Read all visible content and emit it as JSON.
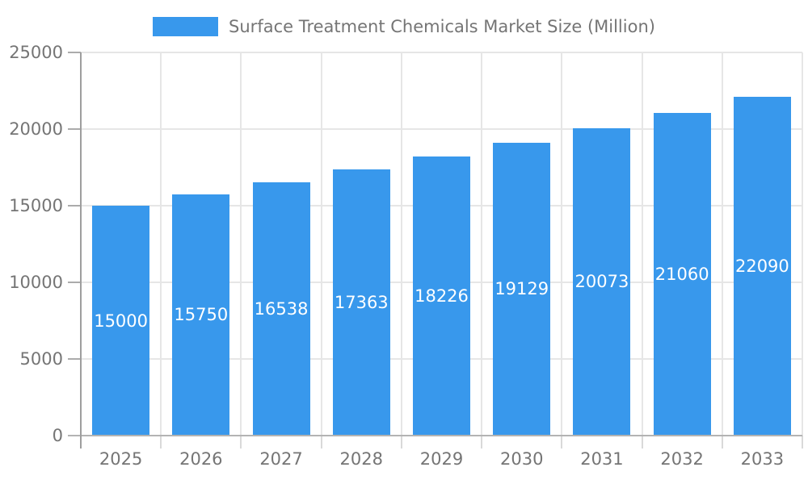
{
  "chart_data": {
    "type": "bar",
    "title": "Surface Treatment Chemicals Market Size (Million)",
    "categories": [
      "2025",
      "2026",
      "2027",
      "2028",
      "2029",
      "2030",
      "2031",
      "2032",
      "2033"
    ],
    "series": [
      {
        "name": "Surface Treatment Chemicals Market Size (Million)",
        "values": [
          15000,
          15750,
          16538,
          17363,
          18226,
          19129,
          20073,
          21060,
          22090
        ]
      }
    ],
    "xlabel": "",
    "ylabel": "",
    "ylim": [
      0,
      25000
    ],
    "y_ticks": [
      0,
      5000,
      10000,
      15000,
      20000,
      25000
    ],
    "grid": true,
    "legend_position": "top",
    "value_labels_position": "center-of-bar"
  },
  "colors": {
    "bar": "#3898ec",
    "axis_text": "#757575",
    "bar_label_text": "#ffffff",
    "gridline": "#e6e6e6",
    "axis_line": "#9e9e9e",
    "y_tick": "#ababab",
    "baseline": "#b3b3b3",
    "tick_light": "#d9d9d9",
    "background": "#ffffff"
  }
}
